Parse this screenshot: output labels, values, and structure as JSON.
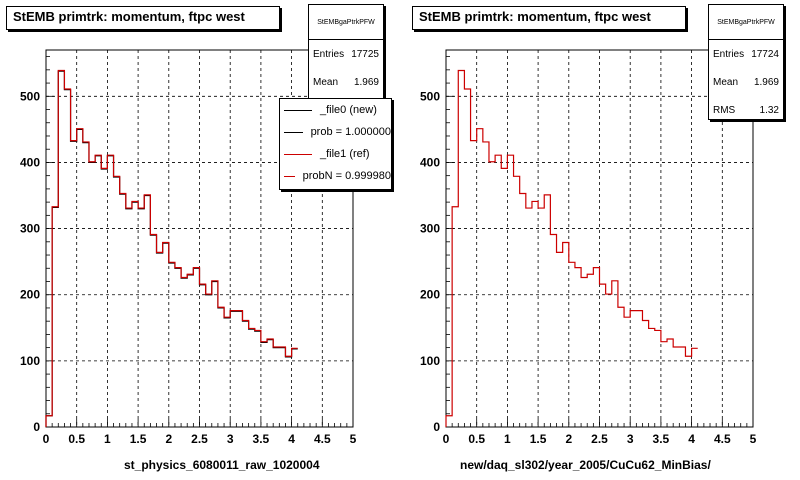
{
  "chart_data": [
    {
      "type": "line",
      "title": "StEMB primtrk: momentum, ftpc west",
      "xlabel": "st_physics_6080011_raw_1020004",
      "xlim": [
        0,
        5
      ],
      "ylim": [
        0,
        570
      ],
      "x_ticks": [
        "0",
        "0.5",
        "1",
        "1.5",
        "2",
        "2.5",
        "3",
        "3.5",
        "4",
        "4.5",
        "5"
      ],
      "y_ticks": [
        "0",
        "100",
        "200",
        "300",
        "400",
        "500"
      ],
      "bin_width": 0.1,
      "grid": true,
      "stats": {
        "name": "StEMBgaPtrkPFW",
        "rows": [
          {
            "label": "Entries",
            "value": "17725"
          },
          {
            "label": "Mean",
            "value": "1.969"
          }
        ]
      },
      "legend": {
        "placement": "top-right",
        "entries": [
          {
            "label": "_file0 (new)",
            "color": "#000000"
          },
          {
            "label": "prob = 1.000000",
            "color": "#000000"
          },
          {
            "label": "_file1 (ref)",
            "color": "#cc0000"
          },
          {
            "label": "probN = 0.999980",
            "color": "#cc0000"
          }
        ]
      },
      "series": [
        {
          "color": "#000000",
          "values": [
            17,
            332,
            538,
            510,
            432,
            450,
            430,
            400,
            410,
            390,
            410,
            378,
            352,
            330,
            340,
            330,
            350,
            290,
            263,
            278,
            248,
            240,
            225,
            230,
            240,
            215,
            200,
            220,
            180,
            165,
            175,
            175,
            160,
            148,
            145,
            128,
            132,
            120,
            120,
            106,
            118
          ]
        },
        {
          "color": "#cc0000",
          "values": [
            17,
            333,
            539,
            511,
            433,
            451,
            431,
            401,
            411,
            391,
            411,
            379,
            353,
            331,
            341,
            331,
            351,
            291,
            264,
            279,
            249,
            241,
            226,
            231,
            241,
            216,
            201,
            221,
            181,
            166,
            176,
            176,
            161,
            149,
            146,
            129,
            133,
            121,
            121,
            107,
            119
          ]
        }
      ]
    },
    {
      "type": "line",
      "title": "StEMB primtrk: momentum, ftpc west",
      "xlabel": "new/daq_sl302/year_2005/CuCu62_MinBias/",
      "xlim": [
        0,
        5
      ],
      "ylim": [
        0,
        570
      ],
      "x_ticks": [
        "0",
        "0.5",
        "1",
        "1.5",
        "2",
        "2.5",
        "3",
        "3.5",
        "4",
        "4.5",
        "5"
      ],
      "y_ticks": [
        "0",
        "100",
        "200",
        "300",
        "400",
        "500"
      ],
      "bin_width": 0.1,
      "grid": true,
      "stats": {
        "name": "StEMBgaPtrkPFW",
        "rows": [
          {
            "label": "Entries",
            "value": "17724"
          },
          {
            "label": "Mean",
            "value": "1.969"
          },
          {
            "label": "RMS",
            "value": "1.32"
          }
        ]
      },
      "series": [
        {
          "color": "#cc0000",
          "values": [
            17,
            333,
            539,
            511,
            433,
            451,
            431,
            401,
            411,
            391,
            411,
            379,
            353,
            331,
            341,
            331,
            351,
            291,
            264,
            279,
            249,
            241,
            226,
            231,
            241,
            216,
            201,
            221,
            181,
            166,
            176,
            176,
            161,
            149,
            146,
            129,
            133,
            121,
            121,
            107,
            119
          ]
        }
      ]
    }
  ]
}
